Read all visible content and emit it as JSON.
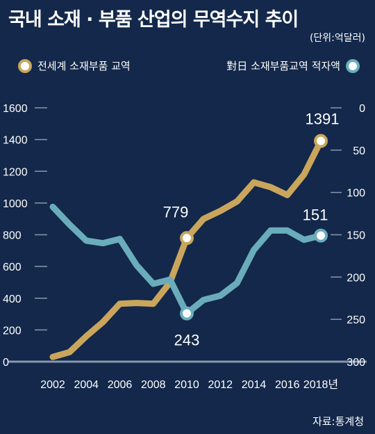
{
  "title": "국내 소재 · 부품 산업의 무역수지 추이",
  "unit": "(단위:억달러)",
  "source": "자료:통계청",
  "colors": {
    "background": "#13284a",
    "series1": "#c9a65c",
    "series2": "#6aacbb",
    "grid": "#8a97ad"
  },
  "chart_data": {
    "type": "line",
    "x": [
      2002,
      2003,
      2004,
      2005,
      2006,
      2007,
      2008,
      2009,
      2010,
      2011,
      2012,
      2013,
      2014,
      2015,
      2016,
      2017,
      2018
    ],
    "xticks": [
      "2002",
      "2004",
      "2006",
      "2008",
      "2010",
      "2012",
      "2014",
      "2016",
      "2018년"
    ],
    "xlim": [
      2002,
      2018
    ],
    "left_axis": {
      "ylim": [
        0,
        1600
      ],
      "ticks": [
        "0",
        "200",
        "400",
        "600",
        "800",
        "1000",
        "1200",
        "1400",
        "1600"
      ]
    },
    "right_axis": {
      "ylim": [
        0,
        300
      ],
      "inverted": true,
      "ticks": [
        "0",
        "50",
        "100",
        "150",
        "200",
        "250",
        "300"
      ]
    },
    "series": [
      {
        "name": "전세계 소재부품 교역",
        "axis": "left",
        "values": [
          30,
          60,
          160,
          250,
          365,
          370,
          365,
          500,
          779,
          900,
          950,
          1010,
          1130,
          1100,
          1050,
          1180,
          1391
        ],
        "labels": {
          "2010": "779",
          "2018": "1391"
        }
      },
      {
        "name": "對日 소재부품교역 적자액",
        "axis": "right",
        "values": [
          117,
          138,
          157,
          160,
          155,
          186,
          208,
          203,
          243,
          227,
          222,
          207,
          168,
          145,
          145,
          156,
          151
        ],
        "labels": {
          "2010": "243",
          "2018": "151"
        }
      }
    ]
  }
}
